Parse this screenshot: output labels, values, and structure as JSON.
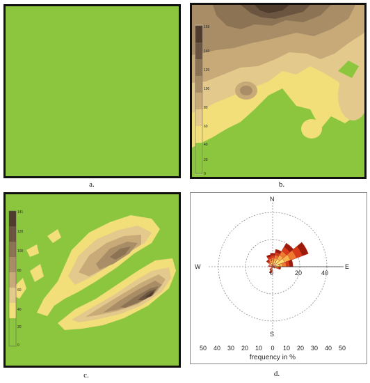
{
  "colors": {
    "green": "#8cc63f",
    "yellow": "#f2df7a",
    "tan1": "#e3c98c",
    "tan2": "#c8aa78",
    "brown1": "#a88d67",
    "brown2": "#8b7354",
    "brown3": "#6b5540",
    "brown4": "#4f3c2c",
    "rose": [
      "#fff7a6",
      "#fde06d",
      "#f9b24b",
      "#f07a2e",
      "#d83a1a",
      "#9d1a0a"
    ]
  },
  "panels": {
    "a": {
      "label": "a."
    },
    "b": {
      "label": "b.",
      "legend_max": "159",
      "legend_ticks": [
        "140",
        "120",
        "100",
        "80",
        "60",
        "40",
        "20",
        "0"
      ]
    },
    "c": {
      "label": "c.",
      "legend_max": "141",
      "legend_ticks": [
        "120",
        "100",
        "80",
        "60",
        "40",
        "20",
        "0"
      ]
    },
    "d": {
      "label": "d."
    }
  },
  "chart_data": {
    "type": "windrose",
    "compass": {
      "north": "N",
      "south": "S",
      "west": "W",
      "east": "E"
    },
    "radial_ticks": [
      "0",
      "20",
      "40"
    ],
    "xlabel": "frequency in %",
    "x_ticks": [
      "50",
      "40",
      "30",
      "20",
      "10",
      "0",
      "10",
      "20",
      "30",
      "40",
      "50"
    ],
    "sectors": [
      {
        "direction_deg": 60,
        "frequency": 28
      },
      {
        "direction_deg": 40,
        "frequency": 20
      },
      {
        "direction_deg": 20,
        "frequency": 13
      },
      {
        "direction_deg": 80,
        "frequency": 15
      },
      {
        "direction_deg": 0,
        "frequency": 10
      },
      {
        "direction_deg": 340,
        "frequency": 9
      },
      {
        "direction_deg": 320,
        "frequency": 6
      },
      {
        "direction_deg": 100,
        "frequency": 6
      },
      {
        "direction_deg": 200,
        "frequency": 5
      },
      {
        "direction_deg": 220,
        "frequency": 3
      },
      {
        "direction_deg": 120,
        "frequency": 2
      },
      {
        "direction_deg": 280,
        "frequency": 3
      }
    ]
  }
}
